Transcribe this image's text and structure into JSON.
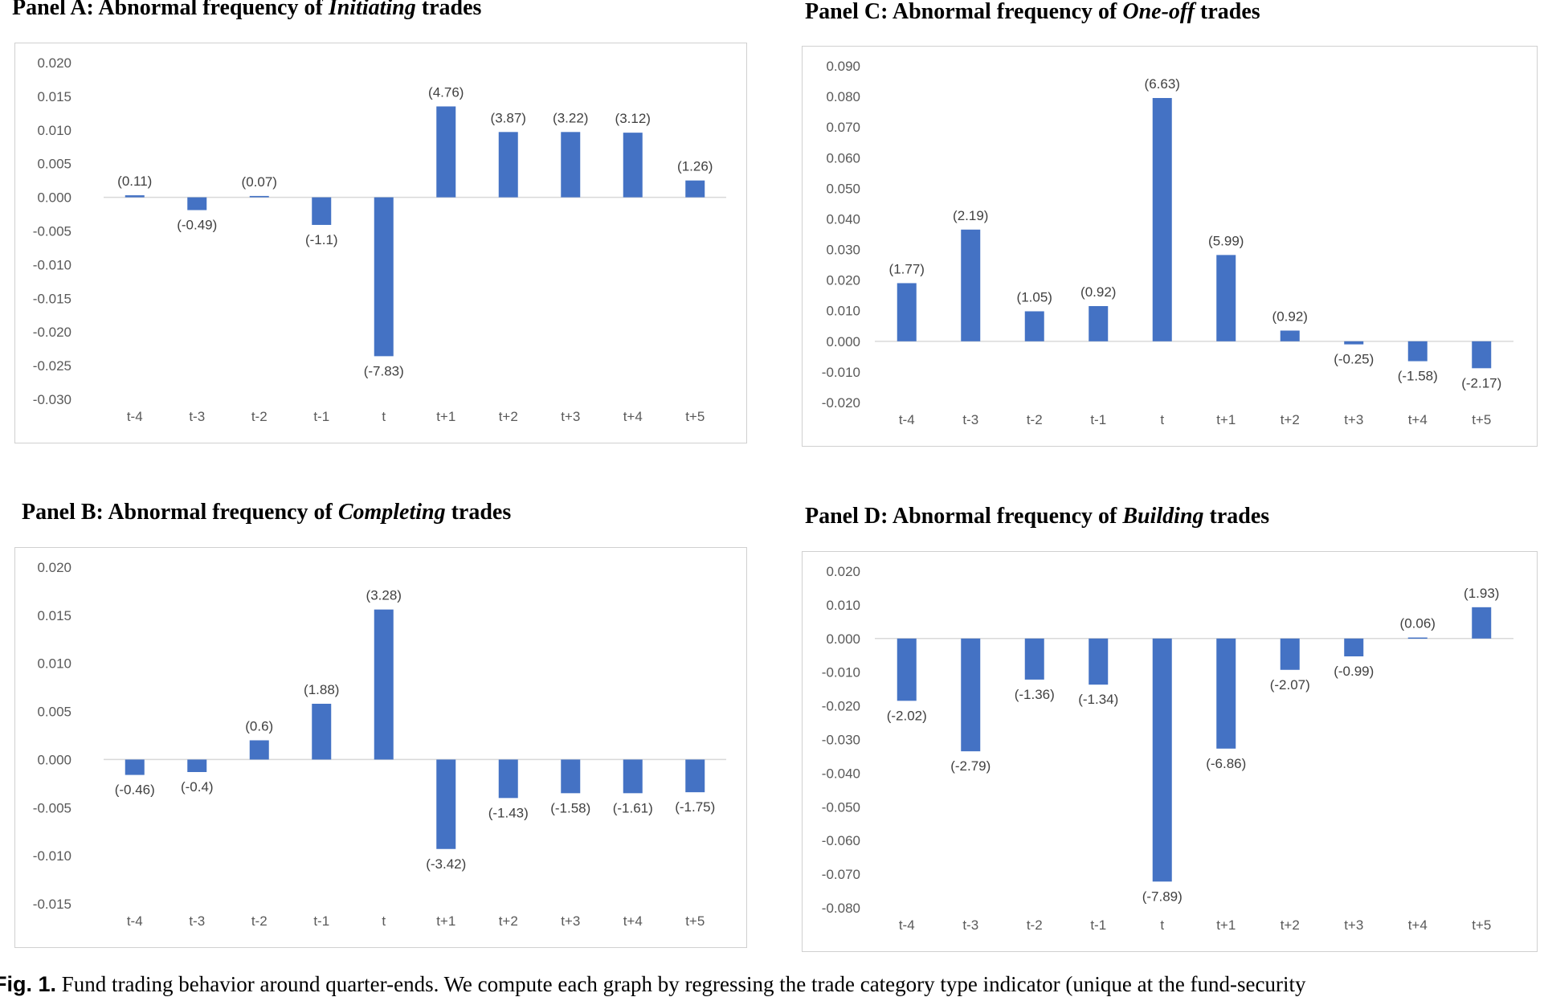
{
  "caption": {
    "label": "Fig. 1.",
    "text": "Fund trading behavior around quarter-ends. We compute each graph by regressing the trade category type indicator (unique at the fund-security"
  },
  "chart_data": [
    {
      "id": "A",
      "type": "bar",
      "title_prefix": "Panel A: Abnormal frequency of ",
      "title_emph": "Initiating",
      "title_suffix": " trades",
      "categories": [
        "t-4",
        "t-3",
        "t-2",
        "t-1",
        "t",
        "t+1",
        "t+2",
        "t+3",
        "t+4",
        "t+5"
      ],
      "values": [
        0.0003,
        -0.0019,
        0.0002,
        -0.0041,
        -0.0236,
        0.0135,
        0.0097,
        0.0097,
        0.0096,
        0.0025
      ],
      "data_labels": [
        "(0.11)",
        "(-0.49)",
        "(0.07)",
        "(-1.1)",
        "(-7.83)",
        "(4.76)",
        "(3.87)",
        "(3.22)",
        "(3.12)",
        "(1.26)"
      ],
      "yticks": [
        "0.020",
        "0.015",
        "0.010",
        "0.005",
        "0.000",
        "-0.005",
        "-0.010",
        "-0.015",
        "-0.020",
        "-0.025",
        "-0.030"
      ],
      "ylim": [
        -0.03,
        0.02
      ],
      "bar_color": "#4472C4",
      "grid": false
    },
    {
      "id": "B",
      "type": "bar",
      "title_prefix": "Panel B: Abnormal frequency of ",
      "title_emph": "Completing",
      "title_suffix": " trades",
      "categories": [
        "t-4",
        "t-3",
        "t-2",
        "t-1",
        "t",
        "t+1",
        "t+2",
        "t+3",
        "t+4",
        "t+5"
      ],
      "values": [
        -0.0016,
        -0.0013,
        0.002,
        0.0058,
        0.0156,
        -0.0093,
        -0.004,
        -0.0035,
        -0.0035,
        -0.0034
      ],
      "data_labels": [
        "(-0.46)",
        "(-0.4)",
        "(0.6)",
        "(1.88)",
        "(3.28)",
        "(-3.42)",
        "(-1.43)",
        "(-1.58)",
        "(-1.61)",
        "(-1.75)"
      ],
      "yticks": [
        "0.020",
        "0.015",
        "0.010",
        "0.005",
        "0.000",
        "-0.005",
        "-0.010",
        "-0.015"
      ],
      "ylim": [
        -0.015,
        0.02
      ],
      "bar_color": "#4472C4",
      "grid": false
    },
    {
      "id": "C",
      "type": "bar",
      "title_prefix": "Panel C: Abnormal frequency of ",
      "title_emph": "One-off",
      "title_suffix": " trades",
      "categories": [
        "t-4",
        "t-3",
        "t-2",
        "t-1",
        "t",
        "t+1",
        "t+2",
        "t+3",
        "t+4",
        "t+5"
      ],
      "values": [
        0.019,
        0.0365,
        0.0098,
        0.0115,
        0.0795,
        0.0282,
        0.0035,
        -0.001,
        -0.0065,
        -0.0088
      ],
      "data_labels": [
        "(1.77)",
        "(2.19)",
        "(1.05)",
        "(0.92)",
        "(6.63)",
        "(5.99)",
        "(0.92)",
        "(-0.25)",
        "(-1.58)",
        "(-2.17)"
      ],
      "yticks": [
        "0.090",
        "0.080",
        "0.070",
        "0.060",
        "0.050",
        "0.040",
        "0.030",
        "0.020",
        "0.010",
        "0.000",
        "-0.010",
        "-0.020"
      ],
      "ylim": [
        -0.02,
        0.09
      ],
      "bar_color": "#4472C4",
      "grid": false
    },
    {
      "id": "D",
      "type": "bar",
      "title_prefix": "Panel D:  Abnormal frequency of ",
      "title_emph": "Building",
      "title_suffix": " trades",
      "categories": [
        "t-4",
        "t-3",
        "t-2",
        "t-1",
        "t",
        "t+1",
        "t+2",
        "t+3",
        "t+4",
        "t+5"
      ],
      "values": [
        -0.0185,
        -0.0335,
        -0.0122,
        -0.0137,
        -0.0722,
        -0.0327,
        -0.0093,
        -0.0053,
        0.0003,
        0.0093
      ],
      "data_labels": [
        "(-2.02)",
        "(-2.79)",
        "(-1.36)",
        "(-1.34)",
        "(-7.89)",
        "(-6.86)",
        "(-2.07)",
        "(-0.99)",
        "(0.06)",
        "(1.93)"
      ],
      "yticks": [
        "0.020",
        "0.010",
        "0.000",
        "-0.010",
        "-0.020",
        "-0.030",
        "-0.040",
        "-0.050",
        "-0.060",
        "-0.070",
        "-0.080"
      ],
      "ylim": [
        -0.08,
        0.02
      ],
      "bar_color": "#4472C4",
      "grid": false
    }
  ]
}
